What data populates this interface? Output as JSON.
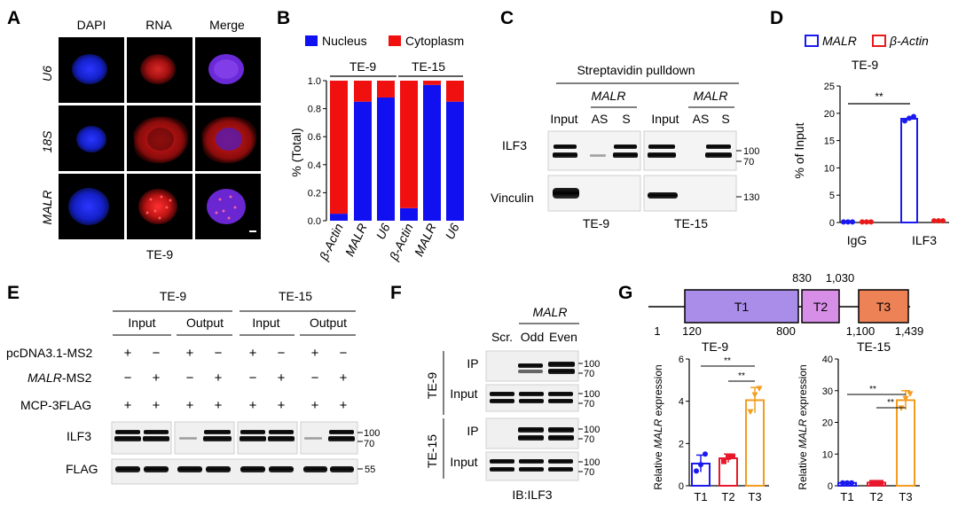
{
  "panel_labels": [
    "A",
    "B",
    "C",
    "D",
    "E",
    "F",
    "G"
  ],
  "colors": {
    "nucleus": "#1010f0",
    "cytoplasm": "#f01010",
    "dapi": "#2030e0",
    "rna": "#e02020",
    "malr": "#1a1af0",
    "actin": "#e81a1a",
    "g_t1": "#1a1af0",
    "g_t2": "#e8182c",
    "g_t3": "#f39c1e",
    "t1_box": "#a98de8",
    "t2_box": "#d68ee6",
    "t3_box": "#ee8257"
  },
  "panelA": {
    "col_headers": [
      "DAPI",
      "RNA",
      "Merge"
    ],
    "row_labels": [
      "U6",
      "18S",
      "MALR"
    ],
    "caption": "TE-9"
  },
  "panelB": {
    "legend": [
      "Nucleus",
      "Cytoplasm"
    ],
    "groups": [
      "TE-9",
      "TE-15"
    ],
    "chart_data": {
      "type": "bar",
      "stacked": true,
      "categories": [
        "β-Actin",
        "MALR",
        "U6",
        "β-Actin",
        "MALR",
        "U6"
      ],
      "groups": [
        {
          "name": "TE-9",
          "categories": [
            0,
            1,
            2
          ]
        },
        {
          "name": "TE-15",
          "categories": [
            3,
            4,
            5
          ]
        }
      ],
      "series": [
        {
          "name": "Nucleus",
          "values": [
            0.05,
            0.85,
            0.88,
            0.09,
            0.97,
            0.85
          ]
        },
        {
          "name": "Cytoplasm",
          "values": [
            0.95,
            0.15,
            0.12,
            0.91,
            0.03,
            0.15
          ]
        }
      ],
      "ylabel": "% (Total)",
      "ylim": [
        0,
        1.0
      ],
      "yticks": [
        "0.0",
        "0.2",
        "0.4",
        "0.6",
        "0.8",
        "1.0"
      ]
    }
  },
  "panelC": {
    "title": "Streptavidin pulldown",
    "malr": "MALR",
    "lanes": [
      "Input",
      "AS",
      "S",
      "Input",
      "AS",
      "S"
    ],
    "rows": [
      "ILF3",
      "Vinculin"
    ],
    "markers": [
      "100",
      "70",
      "130"
    ],
    "cells": [
      "TE-9",
      "TE-15"
    ]
  },
  "panelD": {
    "legend": [
      "MALR",
      "β-Actin"
    ],
    "title": "TE-9",
    "sig": "**",
    "chart_data": {
      "type": "bar",
      "title": "TE-9",
      "categories": [
        "IgG",
        "ILF3"
      ],
      "series": [
        {
          "name": "MALR",
          "values": [
            0.1,
            19.0
          ],
          "points": [
            [
              0.1,
              0.1,
              0.1
            ],
            [
              18.6,
              19.1,
              19.4
            ]
          ]
        },
        {
          "name": "β-Actin",
          "values": [
            0.1,
            0.3
          ],
          "points": [
            [
              0.1,
              0.1,
              0.1
            ],
            [
              0.3,
              0.3,
              0.3
            ]
          ]
        }
      ],
      "ylabel": "% of Input",
      "ylim": [
        0,
        25
      ],
      "yticks": [
        "0",
        "5",
        "10",
        "15",
        "20",
        "25"
      ]
    }
  },
  "panelE": {
    "cells": [
      "TE-9",
      "TE-15"
    ],
    "cols": [
      "Input",
      "Output",
      "Input",
      "Output"
    ],
    "rows": [
      {
        "label": "pcDNA3.1-MS2",
        "signs": [
          "+",
          "−",
          "+",
          "−",
          "+",
          "−",
          "+",
          "−"
        ]
      },
      {
        "label": "-MS2",
        "italic": "MALR",
        "signs": [
          "−",
          "+",
          "−",
          "+",
          "−",
          "+",
          "−",
          "+"
        ]
      },
      {
        "label": "MCP-3FLAG",
        "signs": [
          "+",
          "+",
          "+",
          "+",
          "+",
          "+",
          "+",
          "+"
        ]
      }
    ],
    "blots": [
      "ILF3",
      "FLAG"
    ],
    "markers": [
      "100",
      "70",
      "55"
    ]
  },
  "panelF": {
    "malr": "MALR",
    "lanes": [
      "Scr.",
      "Odd",
      "Even"
    ],
    "cells": [
      "TE-9",
      "TE-15"
    ],
    "rows": [
      "IP",
      "Input",
      "IP",
      "Input"
    ],
    "markers": [
      "100",
      "70"
    ],
    "footer": "IB:ILF3"
  },
  "panelG": {
    "domains": [
      "T1",
      "T2",
      "T3"
    ],
    "coords": [
      "1",
      "120",
      "800",
      "830",
      "1,030",
      "1,100",
      "1,439"
    ],
    "sig": "**",
    "chart_data": [
      {
        "type": "bar",
        "title": "TE-9",
        "categories": [
          "T1",
          "T2",
          "T3"
        ],
        "values": [
          1.05,
          1.3,
          4.05
        ],
        "points": [
          [
            0.7,
            1.0,
            1.5
          ],
          [
            1.15,
            1.35,
            1.4
          ],
          [
            3.5,
            4.3,
            4.6
          ]
        ],
        "errors": [
          0.4,
          0.2,
          0.6
        ],
        "ylabel": "Relative MALR expression",
        "ylim": [
          0,
          6
        ],
        "yticks": [
          "0",
          "2",
          "4",
          "6"
        ]
      },
      {
        "type": "bar",
        "title": "TE-15",
        "categories": [
          "T1",
          "T2",
          "T3"
        ],
        "values": [
          0.9,
          1.0,
          27.0
        ],
        "points": [
          [
            0.9,
            0.9,
            0.9
          ],
          [
            1.0,
            1.0,
            1.0
          ],
          [
            24.5,
            27.5,
            29.0
          ]
        ],
        "errors": [
          0.1,
          0.1,
          3.0
        ],
        "ylabel": "Relative MALR expression",
        "ylim": [
          0,
          40
        ],
        "yticks": [
          "0",
          "10",
          "20",
          "30",
          "40"
        ]
      }
    ]
  }
}
